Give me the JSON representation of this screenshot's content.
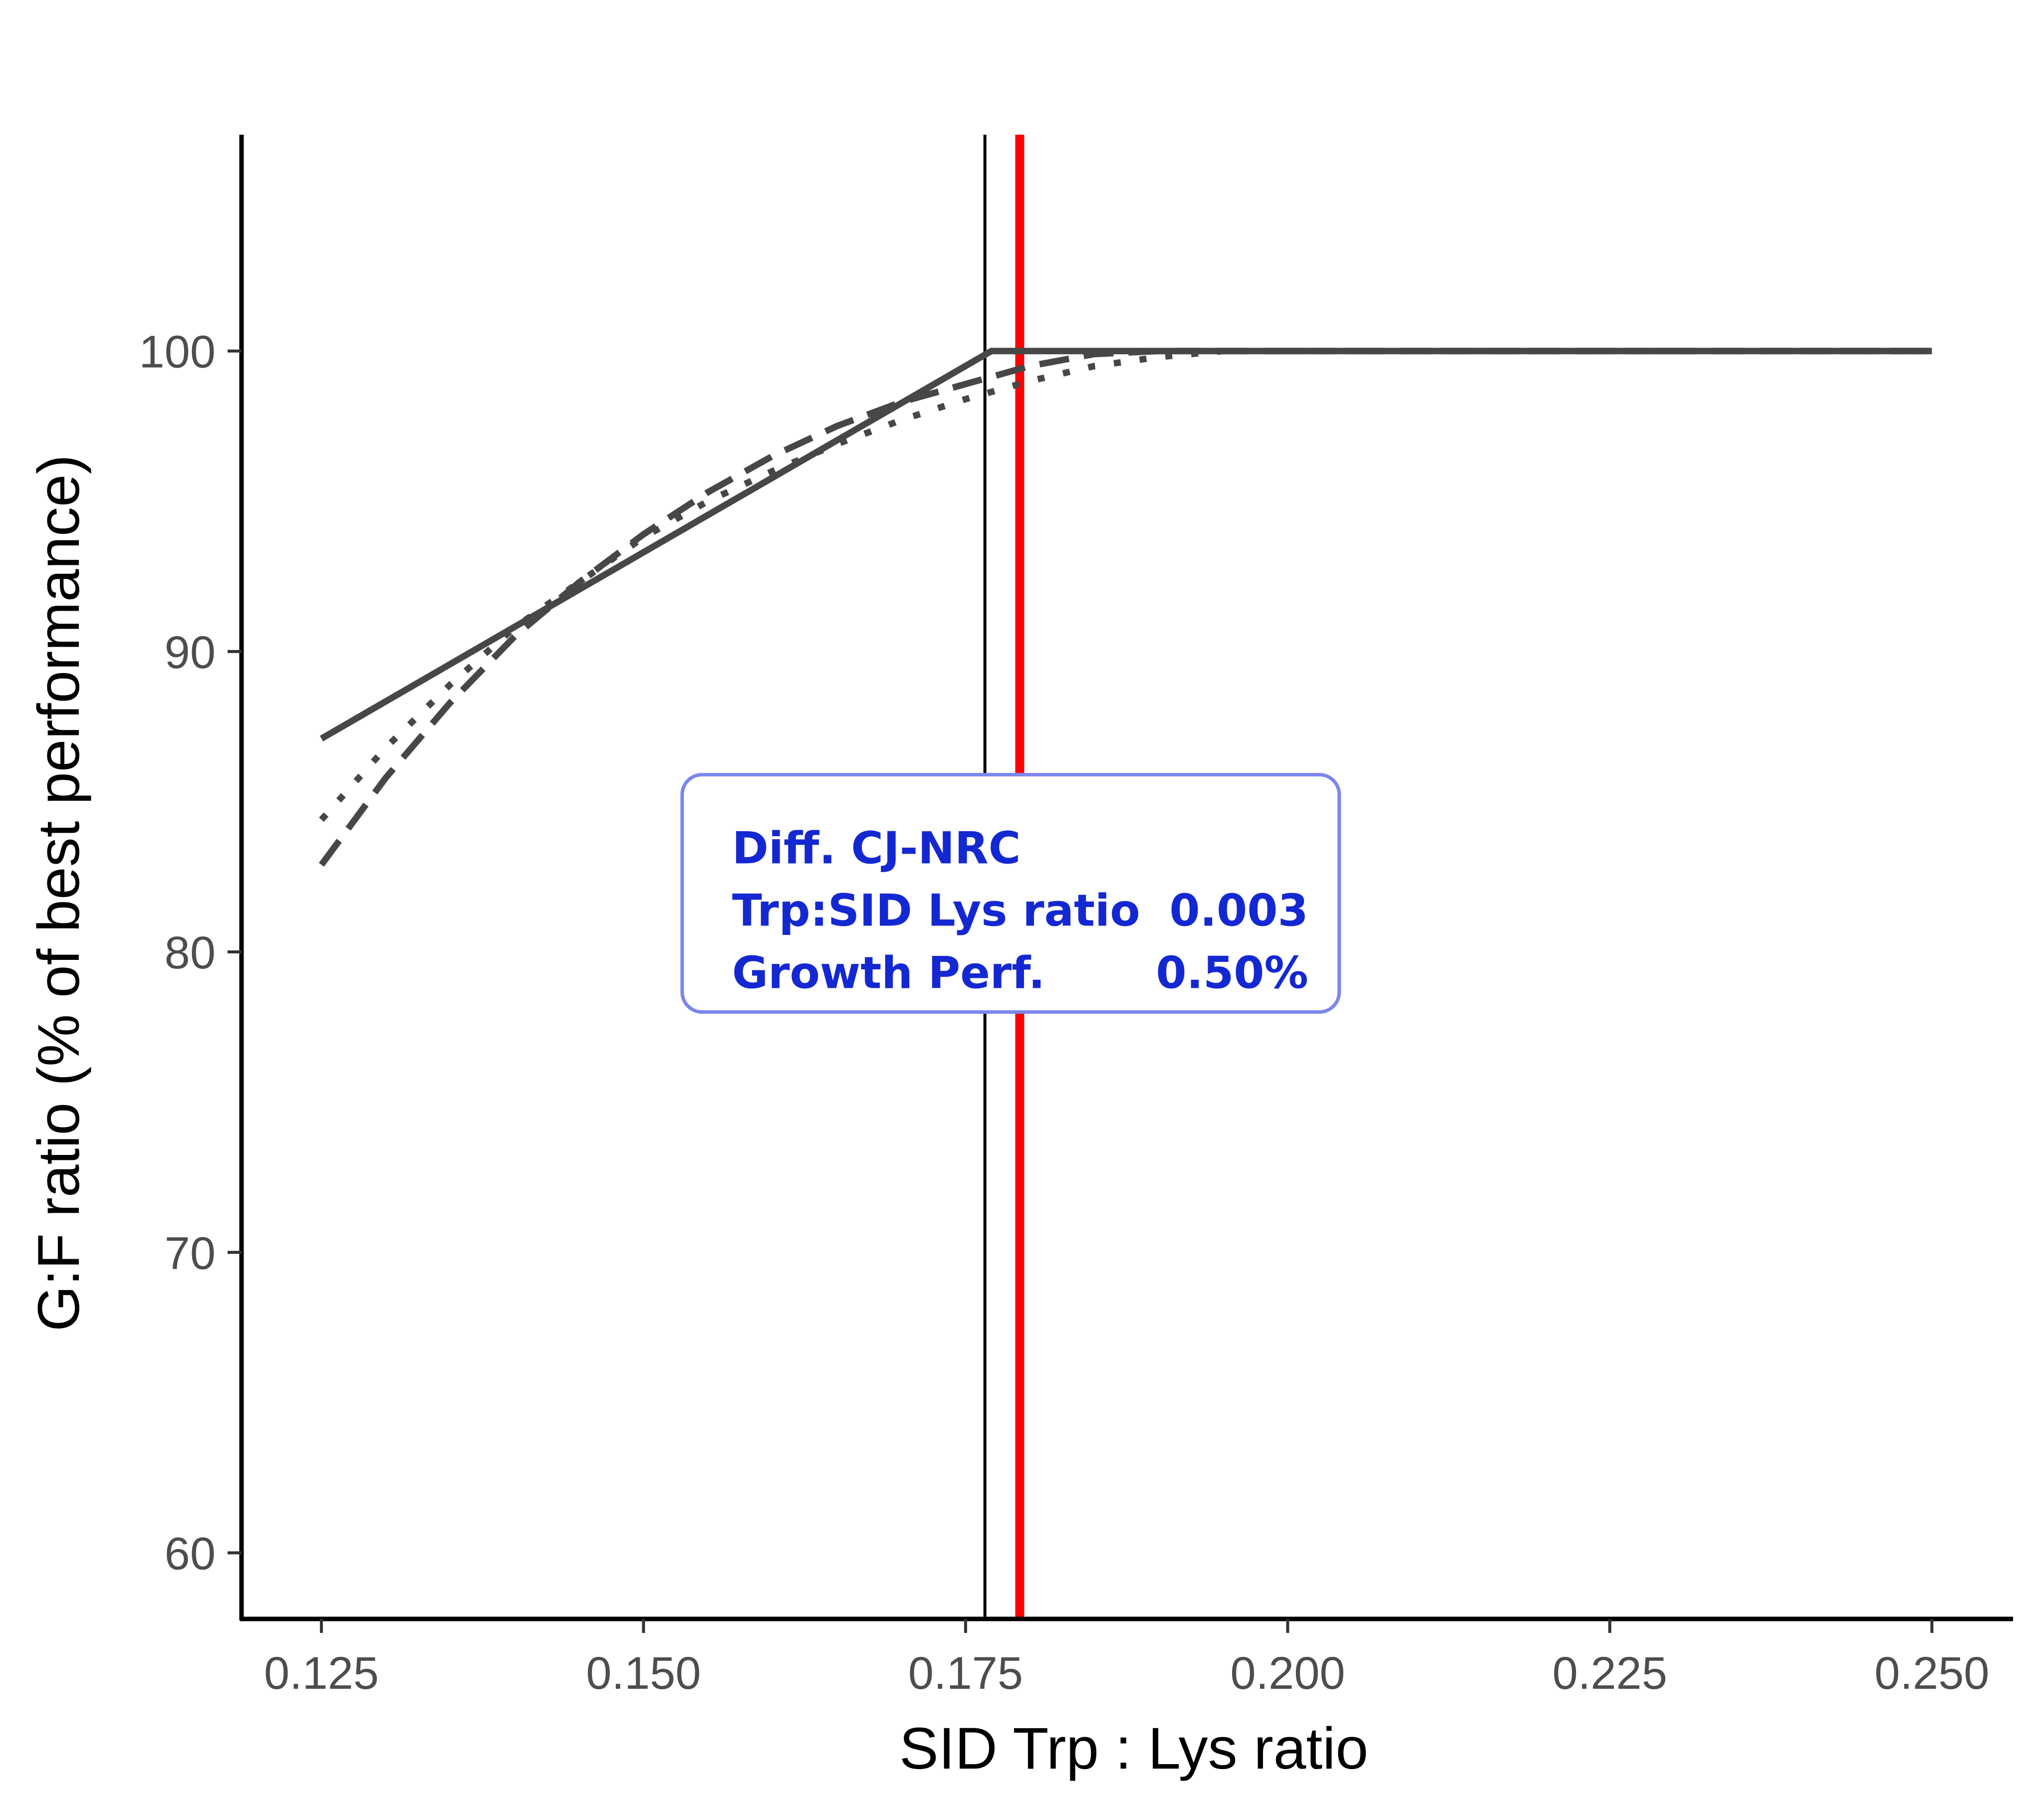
{
  "chart_data": {
    "type": "line",
    "title": "",
    "xlabel": "SID Trp : Lys ratio",
    "ylabel": "G:F ratio (% of best performance)",
    "xlim": [
      0.1188,
      0.2563
    ],
    "ylim": [
      57.8,
      107.2
    ],
    "x_ticks": [
      0.125,
      0.15,
      0.175,
      0.2,
      0.225,
      0.25
    ],
    "x_tick_labels": [
      "0.125",
      "0.150",
      "0.175",
      "0.200",
      "0.225",
      "0.250"
    ],
    "y_ticks": [
      60,
      70,
      80,
      90,
      100
    ],
    "y_tick_labels": [
      "60",
      "70",
      "80",
      "90",
      "100"
    ],
    "grid": false,
    "legend": "none",
    "series": [
      {
        "style": "solid",
        "color": "#474747",
        "x": [
          0.125,
          0.177,
          0.25
        ],
        "y": [
          87.1,
          100.0,
          100.0
        ]
      },
      {
        "style": "dashed",
        "color": "#474747",
        "x": [
          0.125,
          0.13,
          0.135,
          0.14,
          0.145,
          0.15,
          0.155,
          0.16,
          0.165,
          0.17,
          0.175,
          0.18,
          0.185,
          0.19,
          0.2,
          0.225,
          0.25
        ],
        "y": [
          82.9,
          85.8,
          88.3,
          90.5,
          92.3,
          93.9,
          95.3,
          96.5,
          97.5,
          98.3,
          98.9,
          99.5,
          99.9,
          100.0,
          100.0,
          100.0,
          100.0
        ]
      },
      {
        "style": "dotted",
        "color": "#474747",
        "x": [
          0.125,
          0.13,
          0.135,
          0.14,
          0.145,
          0.15,
          0.155,
          0.16,
          0.165,
          0.17,
          0.175,
          0.18,
          0.185,
          0.19,
          0.195,
          0.2,
          0.225,
          0.25
        ],
        "y": [
          84.4,
          86.8,
          88.9,
          90.8,
          92.3,
          93.8,
          95.0,
          96.0,
          96.9,
          97.7,
          98.4,
          99.0,
          99.5,
          99.8,
          100.0,
          100.0,
          100.0,
          100.0
        ]
      }
    ],
    "vlines": [
      {
        "x": 0.1765,
        "color": "#000000",
        "style": "thin"
      },
      {
        "x": 0.1792,
        "color": "#ff0000",
        "style": "thick"
      }
    ],
    "annotation": {
      "x": [
        0.153,
        0.204
      ],
      "y": [
        78.0,
        85.9
      ],
      "title": "Diff. CJ-NRC",
      "rows": [
        {
          "label": "Trp:SID Lys ratio",
          "value": "0.003"
        },
        {
          "label": "Growth Perf.",
          "value": "0.50%"
        }
      ],
      "text_color": "#1428d2",
      "border_color": "#7b86ee"
    }
  }
}
